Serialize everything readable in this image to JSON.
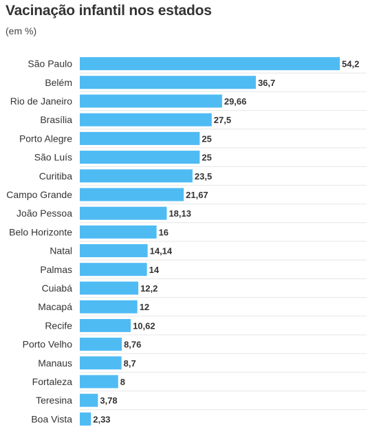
{
  "chart_data": {
    "type": "bar",
    "orientation": "horizontal",
    "title": "Vacinação infantil nos estados",
    "subtitle": "(em %)",
    "categories": [
      "São Paulo",
      "Belém",
      "Rio de Janeiro",
      "Brasília",
      "Porto Alegre",
      "São Luís",
      "Curitiba",
      "Campo Grande",
      "João Pessoa",
      "Belo Horizonte",
      "Natal",
      "Palmas",
      "Cuiabá",
      "Macapá",
      "Recife",
      "Porto Velho",
      "Manaus",
      "Fortaleza",
      "Teresina",
      "Boa Vista"
    ],
    "values": [
      54.2,
      36.7,
      29.66,
      27.5,
      25,
      25,
      23.5,
      21.67,
      18.13,
      16,
      14.14,
      14,
      12.2,
      12,
      10.62,
      8.76,
      8.7,
      8,
      3.78,
      2.33
    ],
    "value_labels": [
      "54,2",
      "36,7",
      "29,66",
      "27,5",
      "25",
      "25",
      "23,5",
      "21,67",
      "18,13",
      "16",
      "14,14",
      "14",
      "12,2",
      "12",
      "10,62",
      "8,76",
      "8,7",
      "8",
      "3,78",
      "2,33"
    ],
    "xlim": [
      0,
      54.2
    ],
    "bar_color": "#4fbbf3",
    "grid": true
  }
}
